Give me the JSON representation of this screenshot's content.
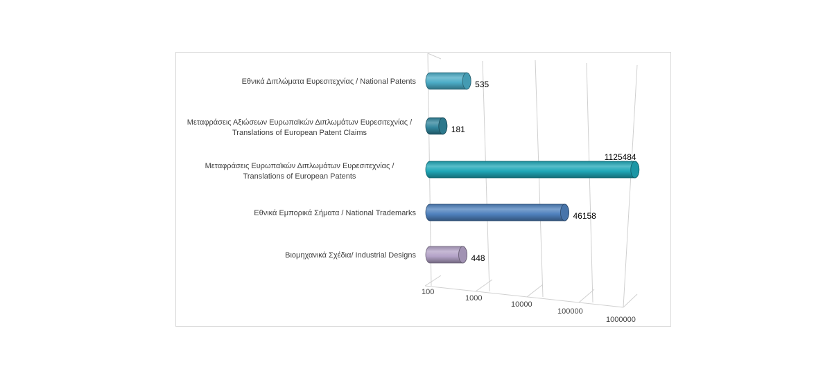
{
  "chart_data": {
    "type": "bar",
    "orientation": "horizontal",
    "style": "3d-cylinder",
    "scale": "log",
    "xlim": [
      100,
      1000000
    ],
    "ticks": [
      "100",
      "1000",
      "10000",
      "100000",
      "1000000"
    ],
    "tick_values": [
      100,
      1000,
      10000,
      100000,
      1000000
    ],
    "grid": true,
    "legend": "none",
    "title": "",
    "categories": [
      {
        "lines": [
          "Εθνικά  Διπλώματα Ευρεσιτεχνίας / National Patents"
        ],
        "value": 535,
        "label": "535",
        "color": "#4bacc6"
      },
      {
        "lines": [
          "Μεταφράσεις  Αξιώσεων  Ευρωπαϊκών  Διπλωμάτων Ευρεσιτεχνίας  /",
          "Translations of European Patent Claims"
        ],
        "value": 181,
        "label": "181",
        "color": "#31859c"
      },
      {
        "lines": [
          "Μεταφράσεις  Ευρωπαϊκών  Διπλωμάτων Ευρεσιτεχνίας  /",
          "Translations of European Patents"
        ],
        "value": 1125484,
        "label": "1125484",
        "color": "#1fa7b7"
      },
      {
        "lines": [
          "Εθνικά  Εμπορικά Σήματα / National Trademarks"
        ],
        "value": 46158,
        "label": "46158",
        "color": "#4f81bd"
      },
      {
        "lines": [
          "Βιομηχανικά Σχέδια/  Industrial Designs"
        ],
        "value": 448,
        "label": "448",
        "color": "#b3a2c7"
      }
    ]
  }
}
